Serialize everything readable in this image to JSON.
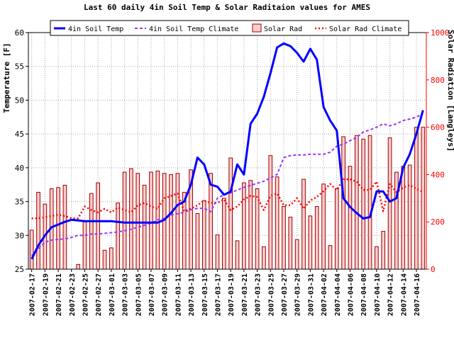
{
  "chart_data": {
    "type": "bar+line",
    "title": "Last 60 daily 4in Soil Temp & Solar Raditaion values for  AMES",
    "ylabel": "Temperature [F]",
    "ylabel_right": "Solar Radiation [Langleys]",
    "ylim": [
      25,
      60
    ],
    "ylim_right": [
      0,
      1000
    ],
    "yticks": [
      25,
      30,
      35,
      40,
      45,
      50,
      55,
      60
    ],
    "yticks_right": [
      0,
      200,
      400,
      600,
      800,
      1000
    ],
    "grid": true,
    "legend_placement": "top",
    "colors": {
      "soil_temp": "#0000ff",
      "soil_temp_climate": "#9933ff",
      "solar_rad_bar_edge": "#990000",
      "solar_rad_bar_fill": "#ffcccc",
      "solar_rad_climate": "#ff0000",
      "right_axis": "#ff0000"
    },
    "x": [
      "2007-02-17",
      "2007-02-18",
      "2007-02-19",
      "2007-02-20",
      "2007-02-21",
      "2007-02-22",
      "2007-02-23",
      "2007-02-24",
      "2007-02-25",
      "2007-02-26",
      "2007-02-27",
      "2007-02-28",
      "2007-03-01",
      "2007-03-02",
      "2007-03-03",
      "2007-03-04",
      "2007-03-05",
      "2007-03-06",
      "2007-03-07",
      "2007-03-08",
      "2007-03-09",
      "2007-03-10",
      "2007-03-11",
      "2007-03-12",
      "2007-03-13",
      "2007-03-14",
      "2007-03-15",
      "2007-03-16",
      "2007-03-17",
      "2007-03-18",
      "2007-03-19",
      "2007-03-20",
      "2007-03-21",
      "2007-03-22",
      "2007-03-23",
      "2007-03-24",
      "2007-03-25",
      "2007-03-26",
      "2007-03-27",
      "2007-03-28",
      "2007-03-29",
      "2007-03-30",
      "2007-03-31",
      "2007-04-01",
      "2007-04-02",
      "2007-04-03",
      "2007-04-04",
      "2007-04-05",
      "2007-04-06",
      "2007-04-07",
      "2007-04-08",
      "2007-04-09",
      "2007-04-10",
      "2007-04-11",
      "2007-04-12",
      "2007-04-13",
      "2007-04-14",
      "2007-04-15",
      "2007-04-16",
      "2007-04-17"
    ],
    "xtick_labels": [
      "2007-02-17",
      "2007-02-19",
      "2007-02-21",
      "2007-02-23",
      "2007-02-25",
      "2007-02-27",
      "2007-03-01",
      "2007-03-03",
      "2007-03-05",
      "2007-03-07",
      "2007-03-09",
      "2007-03-11",
      "2007-03-13",
      "2007-03-15",
      "2007-03-17",
      "2007-03-19",
      "2007-03-21",
      "2007-03-23",
      "2007-03-25",
      "2007-03-27",
      "2007-03-29",
      "2007-03-31",
      "2007-04-02",
      "2007-04-04",
      "2007-04-06",
      "2007-04-08",
      "2007-04-10",
      "2007-04-12",
      "2007-04-14",
      "2007-04-16"
    ],
    "series": [
      {
        "name": "4in Soil Temp",
        "style": "solid",
        "axis": "left",
        "values": [
          26.5,
          28.5,
          30,
          31.2,
          31.6,
          32,
          32.3,
          32.2,
          32.1,
          32.1,
          32.1,
          32.1,
          32.1,
          32,
          31.9,
          31.9,
          31.9,
          31.9,
          31.9,
          31.9,
          32.3,
          33.3,
          34.5,
          35,
          37.5,
          41.5,
          40.5,
          37.5,
          37.2,
          36,
          36.5,
          40.5,
          39,
          46.5,
          48,
          50.5,
          54,
          57.8,
          58.4,
          58,
          57,
          55.7,
          57.6,
          56,
          49,
          47,
          45.5,
          35.5,
          34.2,
          33.3,
          32.5,
          32.7,
          36.5,
          36.5,
          35,
          35.5,
          40,
          42,
          45,
          48.5
        ]
      },
      {
        "name": "4in Soil Temp Climate",
        "style": "dashed",
        "axis": "left",
        "values": [
          27,
          28,
          29,
          29.3,
          29.4,
          29.5,
          29.7,
          30,
          30,
          30.2,
          30.2,
          30.3,
          30.4,
          30.5,
          30.7,
          30.9,
          31.2,
          31.5,
          31.8,
          32.3,
          32.5,
          33,
          33.2,
          33.4,
          33.8,
          34,
          34,
          33.5,
          35.5,
          36,
          36.3,
          36.7,
          37.1,
          37.4,
          37.7,
          38,
          38.5,
          39,
          41.5,
          41.8,
          41.9,
          41.9,
          42,
          42,
          42,
          42.3,
          43.2,
          43.5,
          44,
          44.5,
          45.3,
          45.6,
          46,
          46.5,
          46.2,
          46.5,
          47,
          47.2,
          47.5,
          48
        ]
      },
      {
        "name": "Solar Rad",
        "style": "bar",
        "axis": "right",
        "values": [
          165,
          325,
          275,
          340,
          345,
          355,
          0,
          20,
          200,
          320,
          365,
          80,
          90,
          280,
          410,
          425,
          405,
          355,
          410,
          415,
          405,
          400,
          405,
          325,
          420,
          235,
          290,
          405,
          145,
          300,
          470,
          120,
          365,
          375,
          340,
          95,
          480,
          390,
          265,
          220,
          125,
          380,
          225,
          265,
          360,
          100,
          340,
          560,
          435,
          565,
          550,
          565,
          95,
          160,
          555,
          410,
          435,
          440,
          600,
          600
        ]
      },
      {
        "name": "Solar Rad Climate",
        "style": "dotted",
        "axis": "right",
        "values": [
          215,
          215,
          220,
          225,
          230,
          225,
          215,
          215,
          265,
          250,
          240,
          255,
          240,
          260,
          250,
          240,
          270,
          280,
          265,
          255,
          300,
          310,
          320,
          245,
          255,
          270,
          290,
          280,
          280,
          295,
          250,
          265,
          295,
          310,
          305,
          250,
          310,
          320,
          270,
          270,
          300,
          255,
          290,
          305,
          330,
          360,
          335,
          380,
          380,
          370,
          335,
          335,
          370,
          245,
          360,
          325,
          345,
          355,
          340,
          325
        ]
      }
    ]
  }
}
